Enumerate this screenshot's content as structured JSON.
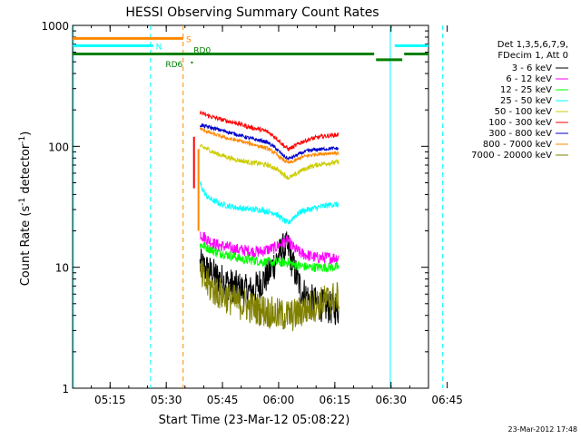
{
  "chart_data": {
    "type": "line",
    "title": "HESSI Observing Summary Count Rates",
    "xlabel": "Start Time (23-Mar-12 05:08:22)",
    "ylabel_parts": [
      "Count Rate (s",
      "-1",
      " detector",
      "-1",
      ")"
    ],
    "yscale": "log",
    "ylim": [
      1,
      1000
    ],
    "xlim_minutes": [
      5.0,
      100.0
    ],
    "x_ticks": [
      {
        "label": "05:15",
        "minute": 15
      },
      {
        "label": "05:30",
        "minute": 30
      },
      {
        "label": "05:45",
        "minute": 45
      },
      {
        "label": "06:00",
        "minute": 60
      },
      {
        "label": "06:15",
        "minute": 75
      },
      {
        "label": "06:30",
        "minute": 90
      },
      {
        "label": "06:45",
        "minute": 105
      }
    ],
    "y_ticks": [
      {
        "label": "1",
        "value": 1
      },
      {
        "label": "10",
        "value": 10
      },
      {
        "label": "100",
        "value": 100
      },
      {
        "label": "1000",
        "value": 1000
      }
    ],
    "legend_header": [
      "Det 1,3,5,6,7,9,",
      "FDecim 1, Att 0"
    ],
    "series": [
      {
        "name": "3 - 6 keV",
        "color": "#000000",
        "x": [
          39,
          41,
          43,
          45,
          47,
          49,
          51,
          53,
          55,
          57,
          59,
          61,
          62.5,
          64,
          66,
          68,
          70,
          72,
          74,
          76
        ],
        "y": [
          10.5,
          9.5,
          8.5,
          7.8,
          7.2,
          6.8,
          6.4,
          6.3,
          7.3,
          8.5,
          11,
          14,
          14.5,
          10,
          6.5,
          5.5,
          5,
          4.8,
          4.6,
          4.5
        ]
      },
      {
        "name": "6 - 12 keV",
        "color": "#ff00ff",
        "x": [
          39,
          41,
          43,
          45,
          47,
          49,
          51,
          53,
          55,
          57,
          59,
          61,
          62.5,
          64,
          66,
          68,
          70,
          72,
          74,
          76
        ],
        "y": [
          19,
          17,
          15.5,
          15,
          14.5,
          14,
          13.8,
          13.5,
          13.5,
          14,
          14.5,
          16,
          16.5,
          14.5,
          13,
          12.5,
          12,
          12,
          12,
          12
        ]
      },
      {
        "name": "12 - 25 keV",
        "color": "#00ff00",
        "x": [
          39,
          41,
          43,
          45,
          47,
          49,
          51,
          53,
          55,
          57,
          59,
          61,
          62.5,
          64,
          66,
          68,
          70,
          72,
          74,
          76
        ],
        "y": [
          15.5,
          14.5,
          13.5,
          13,
          12.5,
          12,
          11.5,
          11.5,
          11.2,
          11,
          11,
          11,
          11,
          10.5,
          10.2,
          10,
          10,
          10,
          10,
          10
        ]
      },
      {
        "name": "25 - 50 keV",
        "color": "#00ffff",
        "x": [
          39,
          40,
          41,
          43,
          45,
          47,
          49,
          51,
          53,
          55,
          57,
          59,
          61,
          62.5,
          64,
          66,
          68,
          70,
          72,
          74,
          76
        ],
        "y": [
          50,
          42,
          38,
          35,
          33,
          32,
          31,
          30.5,
          30,
          30,
          29,
          28,
          25,
          23,
          26,
          29,
          30,
          31,
          32,
          33,
          33
        ]
      },
      {
        "name": "50 - 100 keV",
        "color": "#cccc00",
        "x": [
          39,
          41,
          43,
          45,
          47,
          49,
          51,
          53,
          55,
          57,
          59,
          61,
          62.5,
          64,
          66,
          68,
          70,
          72,
          74,
          76
        ],
        "y": [
          100,
          95,
          88,
          84,
          80,
          77,
          75,
          73,
          72,
          70,
          66,
          60,
          55,
          57,
          63,
          67,
          70,
          72,
          73,
          74
        ]
      },
      {
        "name": "100 - 300 keV",
        "color": "#ff0000",
        "x": [
          39,
          41,
          43,
          45,
          47,
          49,
          51,
          53,
          55,
          57,
          59,
          61,
          62.5,
          64,
          66,
          68,
          70,
          72,
          74,
          76
        ],
        "y": [
          190,
          180,
          172,
          166,
          160,
          155,
          148,
          142,
          138,
          132,
          120,
          104,
          95,
          99,
          108,
          114,
          118,
          121,
          123,
          125
        ]
      },
      {
        "name": "300 - 800 keV",
        "color": "#0000cc",
        "x": [
          39,
          41,
          43,
          45,
          47,
          49,
          51,
          53,
          55,
          57,
          59,
          61,
          62.5,
          64,
          66,
          68,
          70,
          72,
          74,
          76
        ],
        "y": [
          150,
          145,
          140,
          135,
          130,
          125,
          120,
          115,
          112,
          108,
          98,
          85,
          79,
          82,
          88,
          92,
          94,
          95,
          96,
          96
        ]
      },
      {
        "name": "800 - 7000 keV",
        "color": "#ff8800",
        "x": [
          39,
          41,
          43,
          45,
          47,
          49,
          51,
          53,
          55,
          57,
          59,
          61,
          62.5,
          64,
          66,
          68,
          70,
          72,
          74,
          76
        ],
        "y": [
          140,
          132,
          125,
          120,
          115,
          112,
          108,
          104,
          100,
          96,
          88,
          78,
          73,
          75,
          81,
          84,
          86,
          87,
          88,
          88
        ]
      },
      {
        "name": "7000 - 20000 keV",
        "color": "#808000",
        "x": [
          39,
          41,
          43,
          45,
          47,
          49,
          51,
          53,
          55,
          57,
          59,
          61,
          62.5,
          64,
          66,
          68,
          70,
          72,
          74,
          76
        ],
        "y": [
          8.5,
          7.2,
          6.4,
          5.9,
          5.5,
          5.1,
          4.9,
          4.6,
          4.5,
          4.3,
          4.1,
          4,
          4,
          4,
          4.3,
          4.6,
          4.9,
          5.2,
          5.5,
          5.7
        ]
      }
    ],
    "flag_lines": [
      {
        "label": "S",
        "color": "#ff8800",
        "label_color": "#ff8800",
        "segments": [
          [
            5,
            34.5
          ]
        ],
        "level": 780
      },
      {
        "label": "N",
        "color": "#00ffff",
        "label_color": "#00ffff",
        "segments": [
          [
            5,
            26.5
          ],
          [
            91,
            100
          ]
        ],
        "level": 680
      },
      {
        "label": "RD0",
        "color": "#008000",
        "label_color": "#008000",
        "segments": [
          [
            5,
            85.5
          ],
          [
            93.5,
            100
          ]
        ],
        "level": 580
      },
      {
        "label": "RD6",
        "color": "#008000",
        "label_color": "#008000",
        "segments": [
          [
            86,
            93
          ]
        ],
        "level": 520
      }
    ],
    "vertical_markers": [
      {
        "x": 5.2,
        "color": "#00ffff",
        "style": "solid"
      },
      {
        "x": 25.8,
        "color": "#00ffff",
        "style": "dashed"
      },
      {
        "x": 34.5,
        "color": "#ff8800",
        "style": "dashed"
      },
      {
        "x": 89.8,
        "color": "#00ffff",
        "style": "solid"
      },
      {
        "x": 103.8,
        "color": "#00ffff",
        "style": "dashed"
      }
    ],
    "footer_date": "23-Mar-2012 17:48"
  }
}
